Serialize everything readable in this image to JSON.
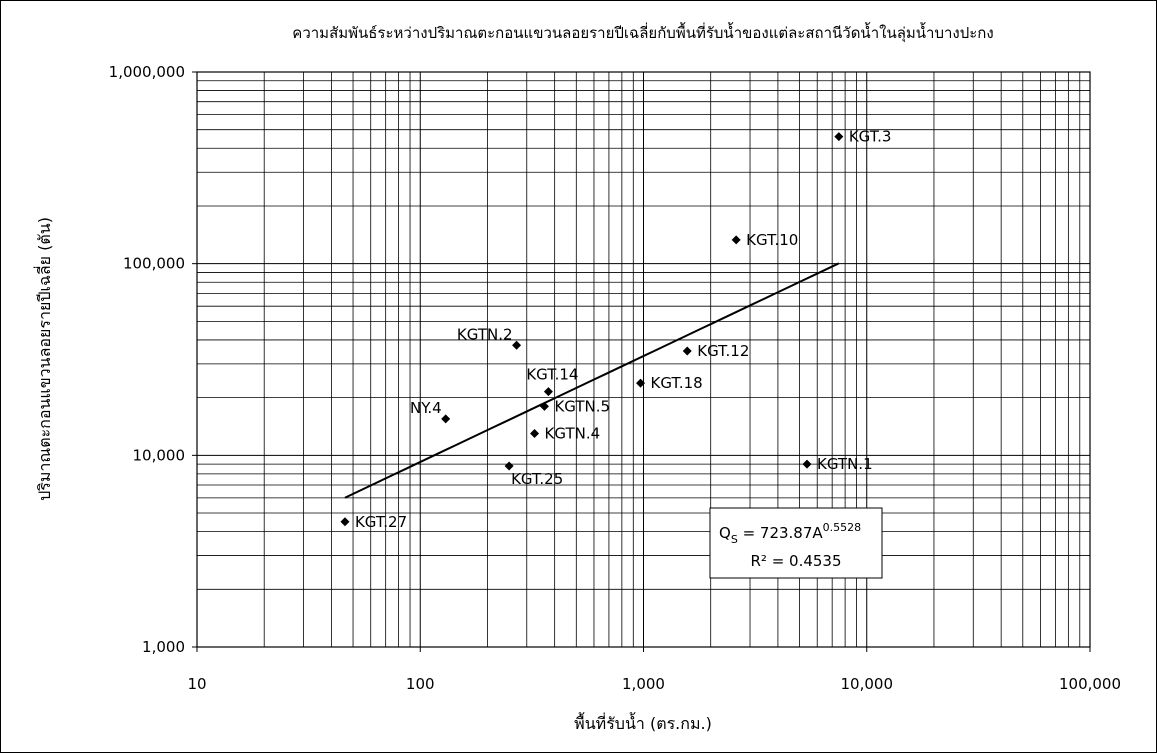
{
  "chart_data": {
    "type": "scatter",
    "title": "ความสัมพันธ์ระหว่างปริมาณตะกอนแขวนลอยรายปีเฉลี่ยกับพื้นที่รับน้ำของแต่ละสถานีวัดน้ำในลุ่มน้ำบางปะกง",
    "xlabel": "พื้นที่รับน้ำ (ตร.กม.)",
    "ylabel": "ปริมาณตะกอนแขวนลอยรายปีเฉลี่ย (ตัน)",
    "x_scale": "log",
    "y_scale": "log",
    "xlim": [
      10,
      100000
    ],
    "ylim": [
      1000,
      1000000
    ],
    "grid": true,
    "x_ticks": [
      {
        "value": 10,
        "label": "10"
      },
      {
        "value": 100,
        "label": "100"
      },
      {
        "value": 1000,
        "label": "1,000"
      },
      {
        "value": 10000,
        "label": "10,000"
      },
      {
        "value": 100000,
        "label": "100,000"
      }
    ],
    "y_ticks": [
      {
        "value": 1000,
        "label": "1,000"
      },
      {
        "value": 10000,
        "label": "10,000"
      },
      {
        "value": 100000,
        "label": "100,000"
      },
      {
        "value": 1000000,
        "label": "1,000,000"
      }
    ],
    "points": [
      {
        "label": "KGT.3",
        "x": 7500,
        "y": 460000
      },
      {
        "label": "KGT.10",
        "x": 2600,
        "y": 133000
      },
      {
        "label": "KGTN.2",
        "x": 270,
        "y": 37500
      },
      {
        "label": "KGT.12",
        "x": 1570,
        "y": 35000
      },
      {
        "label": "KGT.18",
        "x": 970,
        "y": 23800
      },
      {
        "label": "KGT.14",
        "x": 375,
        "y": 21500
      },
      {
        "label": "KGTN.5",
        "x": 360,
        "y": 18000
      },
      {
        "label": "NY.4",
        "x": 130,
        "y": 15500
      },
      {
        "label": "KGTN.4",
        "x": 325,
        "y": 13000
      },
      {
        "label": "KGTN.1",
        "x": 5400,
        "y": 9000
      },
      {
        "label": "KGT.25",
        "x": 250,
        "y": 8800
      },
      {
        "label": "KGT.27",
        "x": 46,
        "y": 4500
      }
    ],
    "trendline": {
      "type": "power",
      "coefficient": 723.87,
      "exponent": 0.5528,
      "x_range": [
        46,
        7500
      ],
      "r_squared": 0.4535
    },
    "annotation": {
      "eq_prefix": "Q",
      "eq_sub": "S",
      "eq_mid": " = 723.87A",
      "eq_sup": "0.5528",
      "r2": "R² = 0.4535"
    }
  }
}
